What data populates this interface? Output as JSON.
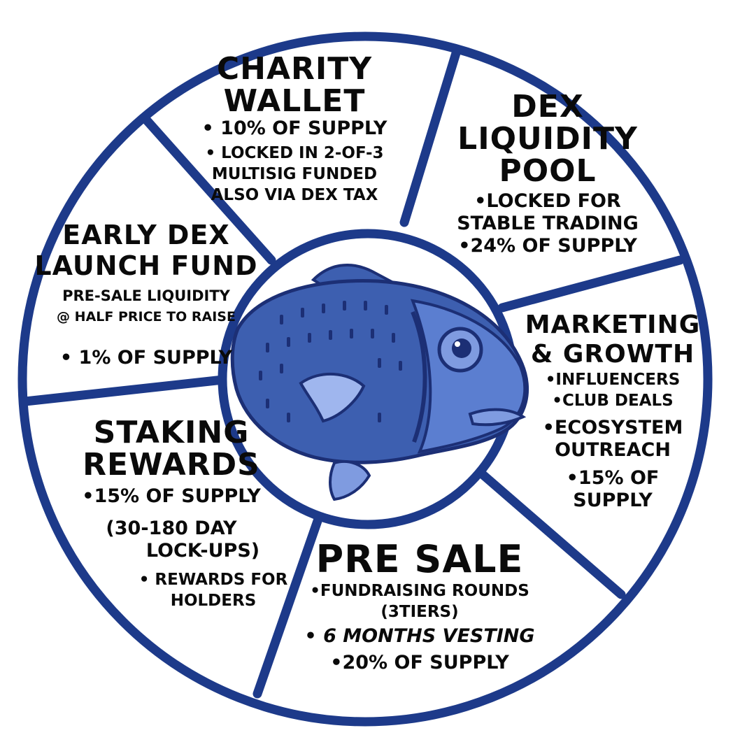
{
  "colors": {
    "ring": "#1d3a8a",
    "fish_dark": "#1c2f75",
    "fish_mid": "#3d5fb0",
    "fish_light": "#7f9be0",
    "text": "#0a0a0a"
  },
  "fish": {
    "icon": "fish-mascot-illustration"
  },
  "segments": {
    "charity": {
      "title1": "CHARITY",
      "title2": "WALLET",
      "b1": "• 10% OF SUPPLY",
      "b2a": "• LOCKED IN 2-OF-3",
      "b2b": "MULTISIG FUNDED",
      "b2c": "ALSO VIA DEX TAX"
    },
    "dex": {
      "title1": "DEX",
      "title2": "LIQUIDITY",
      "title3": "POOL",
      "b1a": "•LOCKED FOR",
      "b1b": "STABLE TRADING",
      "b2": "•24% OF SUPPLY"
    },
    "marketing": {
      "title1": "MARKETING",
      "title2": "& GROWTH",
      "b1": "•INFLUENCERS",
      "b2": "•CLUB DEALS",
      "b3a": "•ECOSYSTEM",
      "b3b": "OUTREACH",
      "b4a": "•15% OF",
      "b4b": "SUPPLY"
    },
    "presale": {
      "title": "PRE SALE",
      "b1a": "•FUNDRAISING ROUNDS",
      "b1b": "(3TIERS)",
      "b2": "• 6 MONTHS VESTING",
      "b3": "•20% OF SUPPLY"
    },
    "staking": {
      "title1": "STAKING",
      "title2": "REWARDS",
      "b1": "•15% OF SUPPLY",
      "b2a": "(30-180 DAY",
      "b2b": "LOCK-UPS)",
      "b3a": "• REWARDS FOR",
      "b3b": "HOLDERS"
    },
    "early": {
      "title1": "EARLY DEX",
      "title2": "LAUNCH FUND",
      "b1a": "PRE-SALE LIQUIDITY",
      "b1b": "@ HALF PRICE TO RAISE",
      "b2": "• 1% OF SUPPLY"
    }
  }
}
